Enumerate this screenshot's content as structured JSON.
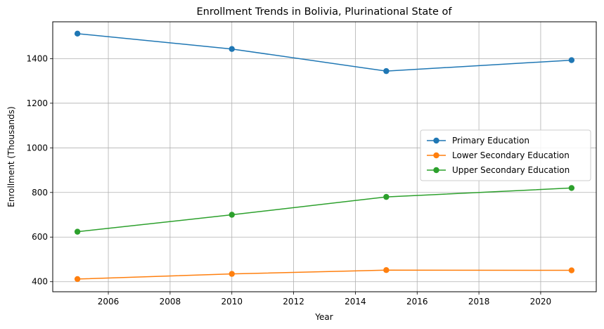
{
  "chart_data": {
    "type": "line",
    "title": "Enrollment Trends in Bolivia, Plurinational State of",
    "xlabel": "Year",
    "ylabel": "Enrollment (Thousands)",
    "x": [
      2005,
      2010,
      2015,
      2021
    ],
    "xlim": [
      2004.2,
      2021.8
    ],
    "ylim": [
      355,
      1565
    ],
    "xticks": [
      2006,
      2008,
      2010,
      2012,
      2014,
      2016,
      2018,
      2020
    ],
    "yticks": [
      400,
      600,
      800,
      1000,
      1200,
      1400
    ],
    "grid": true,
    "legend_position": "center-right",
    "series": [
      {
        "name": "Primary Education",
        "color": "#1f77b4",
        "values": [
          1512,
          1443,
          1344,
          1393
        ]
      },
      {
        "name": "Lower Secondary Education",
        "color": "#ff7f0e",
        "values": [
          412,
          435,
          452,
          451
        ]
      },
      {
        "name": "Upper Secondary Education",
        "color": "#2ca02c",
        "values": [
          624,
          700,
          780,
          820
        ]
      }
    ]
  }
}
